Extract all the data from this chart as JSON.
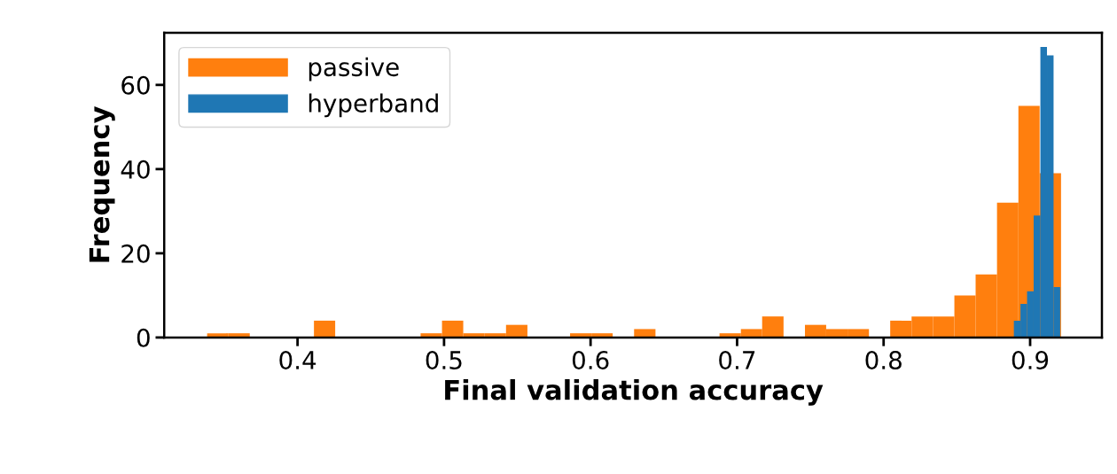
{
  "chart_data": {
    "type": "histogram",
    "xlabel": "Final validation accuracy",
    "ylabel": "Frequency",
    "bins": [
      0.3383,
      0.3529,
      0.3674,
      0.382,
      0.3966,
      0.4112,
      0.4257,
      0.4403,
      0.4549,
      0.4694,
      0.484,
      0.4986,
      0.5131,
      0.5277,
      0.5423,
      0.5569,
      0.5714,
      0.586,
      0.6006,
      0.6151,
      0.6297,
      0.6443,
      0.6588,
      0.6734,
      0.688,
      0.7026,
      0.7171,
      0.7317,
      0.7463,
      0.7608,
      0.7754,
      0.79,
      0.8045,
      0.8191,
      0.8337,
      0.8483,
      0.8628,
      0.8774,
      0.892,
      0.9065,
      0.9211
    ],
    "series": [
      {
        "name": "passive",
        "color": "#ff7f0e",
        "values": [
          1,
          1,
          0,
          0,
          0,
          4,
          0,
          0,
          0,
          0,
          1,
          4,
          1,
          1,
          3,
          0,
          0,
          1,
          1,
          0,
          2,
          0,
          0,
          0,
          1,
          2,
          5,
          0,
          3,
          2,
          2,
          0,
          4,
          5,
          5,
          10,
          15,
          32,
          55,
          39
        ]
      },
      {
        "name": "hyperband",
        "color": "#1f77b4",
        "type": "histogram",
        "bins": [
          0.8889,
          0.8934,
          0.8979,
          0.9024,
          0.907,
          0.9115,
          0.916,
          0.9205
        ],
        "values": [
          4,
          8,
          11,
          29,
          69,
          67,
          12
        ]
      }
    ],
    "xlim": [
      0.309,
      0.949
    ],
    "ylim": [
      0,
      72.4
    ],
    "xticks": [
      0.4,
      0.5,
      0.6,
      0.7,
      0.8,
      0.9
    ],
    "yticks": [
      0,
      20,
      40,
      60
    ],
    "legend": "top left"
  }
}
